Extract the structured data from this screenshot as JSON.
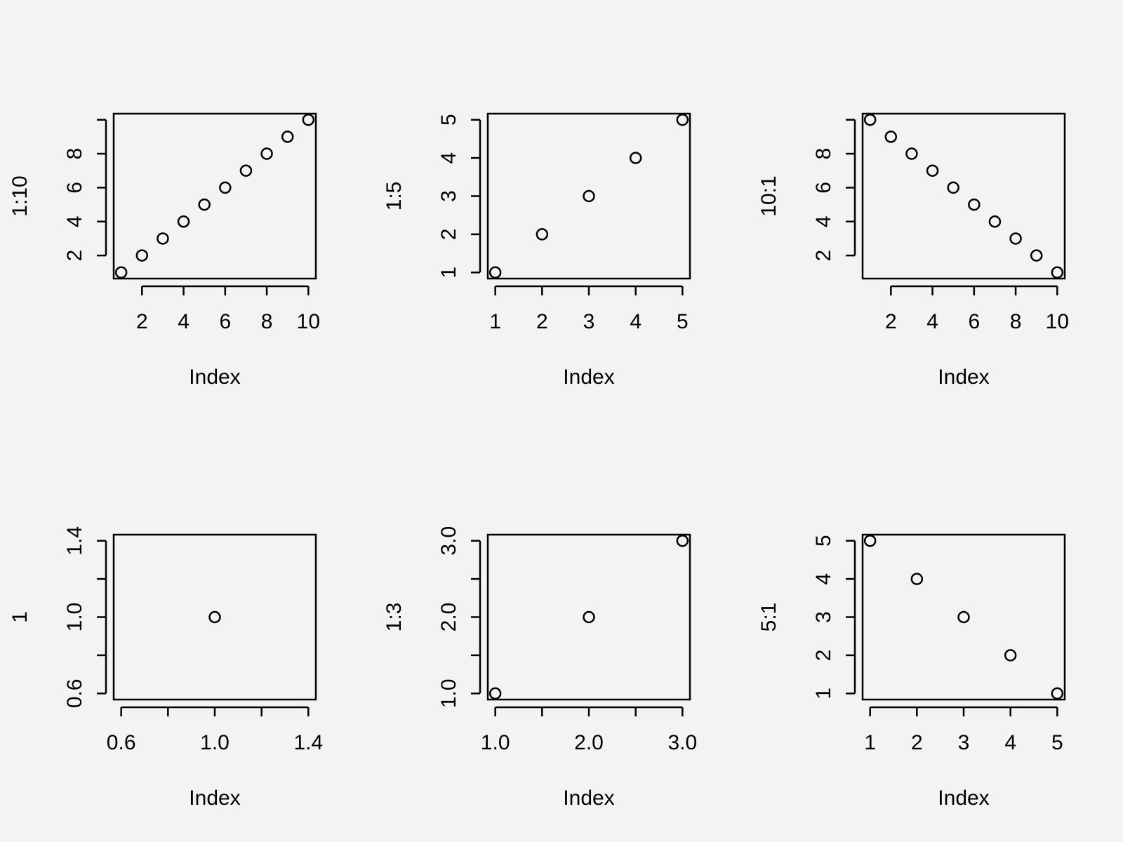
{
  "chart_data": [
    {
      "type": "scatter",
      "xlabel": "Index",
      "ylabel": "1:10",
      "x": [
        1,
        2,
        3,
        4,
        5,
        6,
        7,
        8,
        9,
        10
      ],
      "y": [
        1,
        2,
        3,
        4,
        5,
        6,
        7,
        8,
        9,
        10
      ],
      "xlim": [
        0.64,
        10.36
      ],
      "ylim": [
        0.64,
        10.36
      ],
      "xticks": [
        2,
        4,
        6,
        8,
        10
      ],
      "xtick_labels": [
        "2",
        "4",
        "6",
        "8",
        "10"
      ],
      "yticks": [
        2,
        4,
        6,
        8,
        10
      ],
      "ytick_labels": [
        "2",
        "4",
        "6",
        "8",
        ""
      ]
    },
    {
      "type": "scatter",
      "xlabel": "Index",
      "ylabel": "1:5",
      "x": [
        1,
        2,
        3,
        4,
        5
      ],
      "y": [
        1,
        2,
        3,
        4,
        5
      ],
      "xlim": [
        0.84,
        5.16
      ],
      "ylim": [
        0.84,
        5.16
      ],
      "xticks": [
        1,
        2,
        3,
        4,
        5
      ],
      "xtick_labels": [
        "1",
        "2",
        "3",
        "4",
        "5"
      ],
      "yticks": [
        1,
        2,
        3,
        4,
        5
      ],
      "ytick_labels": [
        "1",
        "2",
        "3",
        "4",
        "5"
      ]
    },
    {
      "type": "scatter",
      "xlabel": "Index",
      "ylabel": "10:1",
      "x": [
        1,
        2,
        3,
        4,
        5,
        6,
        7,
        8,
        9,
        10
      ],
      "y": [
        10,
        9,
        8,
        7,
        6,
        5,
        4,
        3,
        2,
        1
      ],
      "xlim": [
        0.64,
        10.36
      ],
      "ylim": [
        0.64,
        10.36
      ],
      "xticks": [
        2,
        4,
        6,
        8,
        10
      ],
      "xtick_labels": [
        "2",
        "4",
        "6",
        "8",
        "10"
      ],
      "yticks": [
        2,
        4,
        6,
        8,
        10
      ],
      "ytick_labels": [
        "2",
        "4",
        "6",
        "8",
        ""
      ]
    },
    {
      "type": "scatter",
      "xlabel": "Index",
      "ylabel": "1",
      "x": [
        1
      ],
      "y": [
        1
      ],
      "xlim": [
        0.568,
        1.432
      ],
      "ylim": [
        0.568,
        1.432
      ],
      "xticks": [
        0.6,
        0.8,
        1.0,
        1.2,
        1.4
      ],
      "xtick_labels": [
        "0.6",
        "",
        "1.0",
        "",
        "1.4"
      ],
      "yticks": [
        0.6,
        0.8,
        1.0,
        1.2,
        1.4
      ],
      "ytick_labels": [
        "0.6",
        "",
        "1.0",
        "",
        "1.4"
      ]
    },
    {
      "type": "scatter",
      "xlabel": "Index",
      "ylabel": "1:3",
      "x": [
        1,
        2,
        3
      ],
      "y": [
        1,
        2,
        3
      ],
      "xlim": [
        0.92,
        3.08
      ],
      "ylim": [
        0.92,
        3.08
      ],
      "xticks": [
        1.0,
        1.5,
        2.0,
        2.5,
        3.0
      ],
      "xtick_labels": [
        "1.0",
        "",
        "2.0",
        "",
        "3.0"
      ],
      "yticks": [
        1.0,
        1.5,
        2.0,
        2.5,
        3.0
      ],
      "ytick_labels": [
        "1.0",
        "",
        "2.0",
        "",
        "3.0"
      ]
    },
    {
      "type": "scatter",
      "xlabel": "Index",
      "ylabel": "5:1",
      "x": [
        1,
        2,
        3,
        4,
        5
      ],
      "y": [
        5,
        4,
        3,
        2,
        1
      ],
      "xlim": [
        0.84,
        5.16
      ],
      "ylim": [
        0.84,
        5.16
      ],
      "xticks": [
        1,
        2,
        3,
        4,
        5
      ],
      "xtick_labels": [
        "1",
        "2",
        "3",
        "4",
        "5"
      ],
      "yticks": [
        1,
        2,
        3,
        4,
        5
      ],
      "ytick_labels": [
        "1",
        "2",
        "3",
        "4",
        "5"
      ]
    }
  ]
}
